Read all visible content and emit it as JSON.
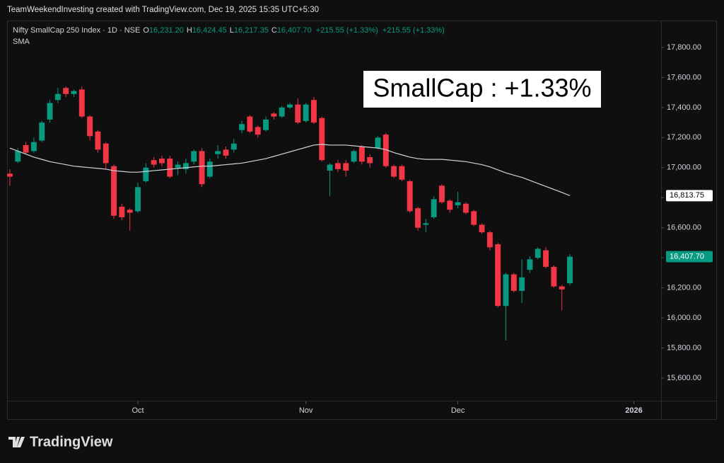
{
  "header": {
    "credit": "TeamWeekendInvesting created with TradingView.com, Dec 19, 2025 15:35 UTC+5:30",
    "logo": "TradingView"
  },
  "chart_data": {
    "type": "candlestick",
    "title": "Nifty SmallCap 250 Index · 1D · NSE",
    "legend": {
      "o_label": "O",
      "o": "16,231.20",
      "h_label": "H",
      "h": "16,424.45",
      "l_label": "L",
      "l": "16,217.35",
      "c_label": "C",
      "c": "16,407.70",
      "change": "+215.55 (+1.33%)",
      "change2": "+215.55 (+1.33%)"
    },
    "annotation": "SmallCap : +1.33%",
    "up_color": "#089981",
    "down_color": "#f23645",
    "open": [
      16960,
      17040,
      17150,
      17110,
      17180,
      17320,
      17450,
      17530,
      17490,
      17520,
      17340,
      17240,
      17160,
      17010,
      16740,
      16720,
      16710,
      16910,
      17050,
      17060,
      17060,
      17000,
      16990,
      17040,
      17110,
      16940,
      17090,
      17120,
      17120,
      17250,
      17340,
      17270,
      17250,
      17360,
      17340,
      17400,
      17420,
      17310,
      17450,
      17330,
      16980,
      17030,
      17030,
      17040,
      17140,
      17070,
      17130,
      17220,
      17010,
      17010,
      16910,
      16730,
      16620,
      16670,
      16880,
      16780,
      16750,
      16760,
      16710,
      16620,
      16570,
      16490,
      16080,
      16290,
      16180,
      16320,
      16400,
      16450,
      16340,
      16210,
      16231.2
    ],
    "high": [
      16990,
      17130,
      17170,
      17200,
      17310,
      17450,
      17530,
      17540,
      17520,
      17540,
      17350,
      17250,
      17170,
      17020,
      16760,
      16730,
      16900,
      17030,
      17070,
      17080,
      17080,
      17040,
      17060,
      17120,
      17130,
      17060,
      17150,
      17140,
      17190,
      17310,
      17350,
      17280,
      17340,
      17370,
      17410,
      17430,
      17460,
      17430,
      17470,
      17340,
      17030,
      17050,
      17050,
      17120,
      17150,
      17090,
      17210,
      17230,
      17020,
      17020,
      16920,
      16740,
      16660,
      16810,
      16890,
      16790,
      16840,
      16770,
      16720,
      16630,
      16580,
      16500,
      16300,
      16300,
      16390,
      16410,
      16470,
      16470,
      16350,
      16220,
      16424.45
    ],
    "low": [
      16880,
      17030,
      17090,
      17100,
      17170,
      17300,
      17430,
      17470,
      17470,
      17330,
      17180,
      17100,
      16990,
      16660,
      16650,
      16580,
      16700,
      16900,
      17000,
      17010,
      16930,
      16950,
      16960,
      17020,
      16870,
      16930,
      17060,
      17060,
      17100,
      17230,
      17230,
      17200,
      17240,
      17320,
      17330,
      17390,
      17290,
      17300,
      17290,
      17040,
      16810,
      16970,
      16940,
      17030,
      17020,
      17000,
      17120,
      17000,
      16930,
      16910,
      16700,
      16580,
      16570,
      16660,
      16760,
      16700,
      16730,
      16690,
      16610,
      16560,
      16450,
      16070,
      15850,
      16170,
      16100,
      16300,
      16390,
      16330,
      16200,
      16050,
      16217.35
    ],
    "close": [
      16940,
      17110,
      17100,
      17170,
      17300,
      17430,
      17490,
      17490,
      17510,
      17340,
      17210,
      17120,
      17030,
      16680,
      16670,
      16700,
      16870,
      17000,
      17020,
      17030,
      16940,
      17020,
      17030,
      17110,
      16890,
      17040,
      17110,
      17080,
      17160,
      17290,
      17240,
      17220,
      17320,
      17340,
      17400,
      17420,
      17300,
      17420,
      17300,
      17050,
      17020,
      16990,
      16980,
      17110,
      17040,
      17030,
      17200,
      17010,
      16940,
      16920,
      16710,
      16600,
      16630,
      16790,
      16770,
      16720,
      16770,
      16700,
      16620,
      16570,
      16470,
      16080,
      16290,
      16180,
      16270,
      16390,
      16460,
      16340,
      16210,
      16190,
      16407.7
    ],
    "close_label": "16,407.70",
    "sma": {
      "name": "SMA",
      "color": "#d1d4dc",
      "last_label": "16,813.75",
      "values": [
        17130,
        17110,
        17090,
        17070,
        17055,
        17040,
        17030,
        17020,
        17010,
        17005,
        17000,
        16995,
        16990,
        16980,
        16975,
        16970,
        16970,
        16975,
        16980,
        16985,
        16990,
        16995,
        17000,
        17005,
        17010,
        17010,
        17015,
        17020,
        17025,
        17030,
        17040,
        17050,
        17060,
        17075,
        17090,
        17105,
        17120,
        17135,
        17150,
        17155,
        17150,
        17150,
        17150,
        17145,
        17140,
        17135,
        17130,
        17120,
        17100,
        17085,
        17070,
        17060,
        17055,
        17055,
        17055,
        17050,
        17045,
        17040,
        17030,
        17020,
        17005,
        16985,
        16965,
        16950,
        16935,
        16915,
        16895,
        16875,
        16855,
        16835,
        16813.75
      ]
    },
    "xlim": [
      -0.35,
      81.4
    ],
    "xticks": [
      {
        "value": 16,
        "label": "Oct"
      },
      {
        "value": 37,
        "label": "Nov"
      },
      {
        "value": 56,
        "label": "Dec"
      },
      {
        "value": 78,
        "label": "2026"
      }
    ],
    "ylim": [
      15327,
      17974
    ],
    "yticks": [
      {
        "value": 15600,
        "label": "15,600.00"
      },
      {
        "value": 15800,
        "label": "15,800.00"
      },
      {
        "value": 16000,
        "label": "16,000.00"
      },
      {
        "value": 16200,
        "label": "16,200.00"
      },
      {
        "value": 16400,
        "label": "16,400.00"
      },
      {
        "value": 16600,
        "label": "16,600.00"
      },
      {
        "value": 16800,
        "label": "16,800.00"
      },
      {
        "value": 17000,
        "label": "17,000.00"
      },
      {
        "value": 17200,
        "label": "17,200.00"
      },
      {
        "value": 17400,
        "label": "17,400.00"
      },
      {
        "value": 17600,
        "label": "17,600.00"
      },
      {
        "value": 17800,
        "label": "17,800.00"
      }
    ],
    "grid": false
  }
}
